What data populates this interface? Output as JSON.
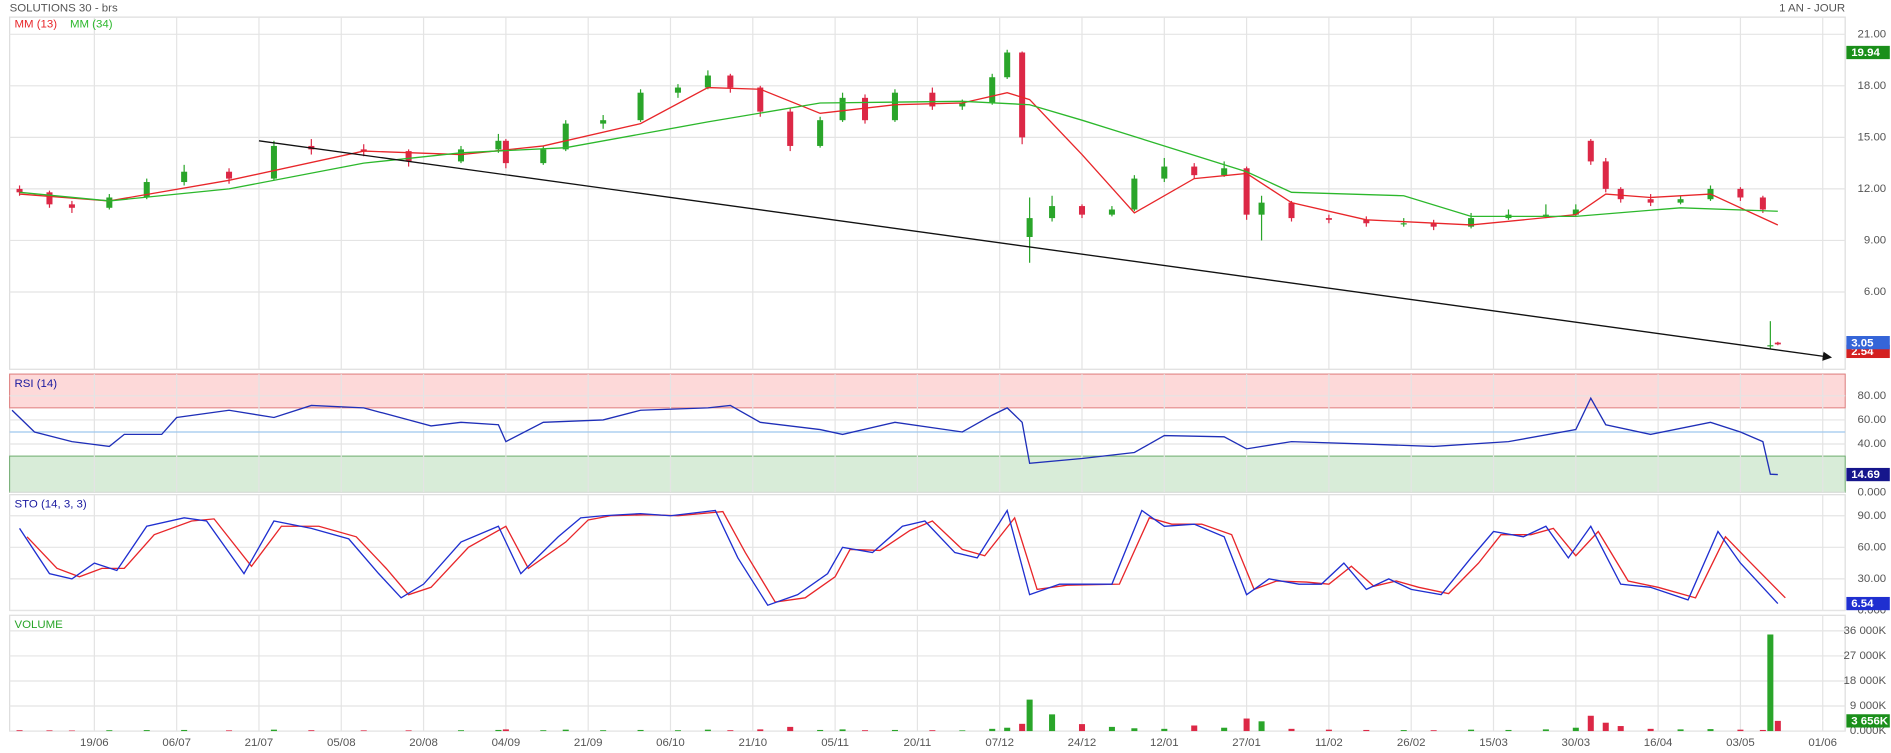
{
  "chart_data": [
    {
      "type": "candlestick",
      "title": "SOLUTIONS 30 - brs",
      "subtitle": "1 AN - JOUR",
      "up_color": "#2aa52a",
      "down_color": "#dc2846",
      "x": [
        1,
        5,
        8,
        13,
        18,
        23,
        29,
        35,
        40,
        47,
        53,
        60,
        65,
        66,
        71,
        74,
        79,
        84,
        89,
        93,
        96,
        100,
        104,
        108,
        111,
        114,
        118,
        123,
        127,
        131,
        133,
        135,
        136,
        139,
        143,
        147,
        150,
        154,
        158,
        162,
        165,
        167,
        171,
        176,
        181,
        186,
        190,
        195,
        200,
        205,
        209,
        211,
        213,
        215,
        219,
        223,
        227,
        231,
        234,
        235,
        236
      ],
      "open": [
        12.0,
        11.8,
        11.1,
        10.9,
        11.5,
        12.4,
        13.0,
        12.6,
        14.5,
        14.3,
        14.2,
        13.6,
        14.3,
        14.8,
        13.5,
        14.3,
        15.8,
        16.0,
        17.6,
        17.9,
        18.6,
        17.9,
        16.5,
        14.5,
        16.0,
        17.3,
        16.0,
        17.6,
        16.8,
        17.0,
        18.5,
        19.94,
        9.2,
        10.3,
        11.0,
        10.5,
        10.8,
        12.6,
        13.3,
        12.8,
        13.2,
        10.5,
        11.2,
        10.3,
        10.2,
        10.0,
        10.0,
        9.8,
        10.3,
        10.5,
        10.5,
        14.8,
        13.6,
        12.0,
        11.4,
        11.2,
        11.4,
        12.0,
        11.5,
        2.85,
        3.05
      ],
      "high": [
        12.2,
        11.9,
        11.3,
        11.7,
        12.6,
        13.4,
        13.2,
        14.8,
        14.9,
        14.6,
        14.3,
        14.5,
        15.2,
        14.9,
        14.5,
        16.0,
        16.3,
        17.8,
        18.1,
        18.9,
        18.7,
        18.0,
        16.7,
        16.2,
        17.6,
        17.5,
        17.8,
        17.9,
        17.2,
        18.7,
        20.1,
        20.0,
        11.5,
        11.6,
        11.1,
        11.0,
        12.8,
        13.8,
        13.5,
        13.6,
        13.3,
        11.6,
        11.3,
        10.5,
        10.4,
        10.3,
        10.2,
        10.6,
        10.8,
        11.1,
        11.1,
        14.9,
        13.8,
        12.1,
        11.7,
        11.6,
        12.2,
        12.1,
        11.6,
        4.3,
        3.1
      ],
      "low": [
        11.6,
        10.9,
        10.6,
        10.8,
        11.4,
        12.2,
        12.3,
        12.5,
        14.0,
        13.9,
        13.3,
        13.5,
        14.1,
        13.2,
        13.4,
        14.2,
        15.5,
        15.9,
        17.3,
        17.8,
        17.6,
        16.2,
        14.2,
        14.4,
        15.9,
        15.8,
        15.9,
        16.6,
        16.6,
        16.9,
        18.4,
        14.6,
        7.7,
        10.1,
        10.3,
        10.4,
        10.7,
        12.4,
        12.6,
        12.7,
        10.2,
        9.0,
        10.1,
        10.0,
        9.8,
        9.8,
        9.6,
        9.7,
        10.2,
        10.3,
        10.4,
        13.4,
        11.8,
        11.2,
        11.0,
        11.1,
        11.3,
        11.3,
        10.6,
        2.7,
        2.9
      ],
      "close": [
        11.8,
        11.1,
        10.9,
        11.5,
        12.4,
        13.0,
        12.6,
        14.5,
        14.3,
        14.2,
        13.6,
        14.3,
        14.8,
        13.5,
        14.3,
        15.8,
        16.0,
        17.6,
        17.9,
        18.6,
        17.9,
        16.5,
        14.5,
        16.0,
        17.3,
        16.0,
        17.6,
        16.8,
        17.0,
        18.5,
        19.94,
        15.0,
        10.3,
        11.0,
        10.5,
        10.8,
        12.6,
        13.3,
        12.8,
        13.2,
        10.5,
        11.2,
        10.3,
        10.2,
        10.0,
        10.0,
        9.8,
        10.3,
        10.5,
        10.5,
        10.8,
        13.6,
        12.0,
        11.4,
        11.2,
        11.4,
        12.0,
        11.5,
        10.8,
        2.9,
        2.95
      ],
      "series": [
        {
          "name": "MM (13)",
          "color": "#e8262a",
          "x": [
            1,
            13,
            29,
            47,
            60,
            71,
            84,
            93,
            100,
            108,
            118,
            127,
            133,
            136,
            143,
            150,
            158,
            165,
            171,
            181,
            195,
            209,
            213,
            219,
            227,
            236
          ],
          "values": [
            11.7,
            11.3,
            12.5,
            14.2,
            14.0,
            14.5,
            15.8,
            17.9,
            17.8,
            16.4,
            16.9,
            17.0,
            17.6,
            17.2,
            14.0,
            10.6,
            12.6,
            12.9,
            11.2,
            10.2,
            9.9,
            10.5,
            11.7,
            11.5,
            11.7,
            9.9
          ]
        },
        {
          "name": "MM (34)",
          "color": "#2cb82c",
          "x": [
            1,
            13,
            29,
            47,
            60,
            74,
            93,
            108,
            127,
            136,
            143,
            165,
            171,
            186,
            195,
            209,
            223,
            236
          ],
          "values": [
            11.8,
            11.3,
            12.0,
            13.5,
            14.1,
            14.4,
            15.9,
            17.0,
            17.1,
            16.9,
            16.0,
            13.0,
            11.8,
            11.6,
            10.4,
            10.4,
            10.9,
            10.7
          ]
        }
      ],
      "trendline": {
        "color": "#111111",
        "x": [
          33,
          243
        ],
        "values": [
          14.8,
          2.2
        ]
      },
      "xlim": [
        0,
        245
      ],
      "xticks": [
        {
          "value": 11,
          "label": "19/06"
        },
        {
          "value": 22,
          "label": "06/07"
        },
        {
          "value": 33,
          "label": "21/07"
        },
        {
          "value": 44,
          "label": "05/08"
        },
        {
          "value": 55,
          "label": "20/08"
        },
        {
          "value": 66,
          "label": "04/09"
        },
        {
          "value": 77,
          "label": "21/09"
        },
        {
          "value": 88,
          "label": "06/10"
        },
        {
          "value": 99,
          "label": "21/10"
        },
        {
          "value": 110,
          "label": "05/11"
        },
        {
          "value": 121,
          "label": "20/11"
        },
        {
          "value": 132,
          "label": "07/12"
        },
        {
          "value": 143,
          "label": "24/12"
        },
        {
          "value": 154,
          "label": "12/01"
        },
        {
          "value": 165,
          "label": "27/01"
        },
        {
          "value": 176,
          "label": "11/02"
        },
        {
          "value": 187,
          "label": "26/02"
        },
        {
          "value": 198,
          "label": "15/03"
        },
        {
          "value": 209,
          "label": "30/03"
        },
        {
          "value": 220,
          "label": "16/04"
        },
        {
          "value": 231,
          "label": "03/05"
        },
        {
          "value": 242,
          "label": "01/06"
        }
      ],
      "ylim": [
        1.5,
        22
      ],
      "yticks": [
        {
          "value": 6,
          "label": "6.00"
        },
        {
          "value": 9,
          "label": "9.00"
        },
        {
          "value": 12,
          "label": "12.00"
        },
        {
          "value": 15,
          "label": "15.00"
        },
        {
          "value": 18,
          "label": "18.00"
        },
        {
          "value": 21,
          "label": "21.00"
        }
      ],
      "badges": [
        {
          "value": 19.94,
          "color": "#1a8f1a"
        },
        {
          "value": 2.54,
          "color": "#d42020"
        },
        {
          "value": 3.05,
          "color": "#3565d8"
        }
      ]
    },
    {
      "type": "line",
      "title": "RSI (14)",
      "title_color": "#1a1aa0",
      "ylim": [
        0,
        98
      ],
      "yticks": [
        {
          "value": 0,
          "label": "0.000"
        },
        {
          "value": 40,
          "label": "40.00"
        },
        {
          "value": 60,
          "label": "60.00"
        },
        {
          "value": 80,
          "label": "80.00"
        }
      ],
      "bands": [
        {
          "from": 70,
          "to": 98,
          "color": "#fdd9d9",
          "edge": "#e07a7a"
        },
        {
          "from": 0,
          "to": 30,
          "color": "#d8ecd8",
          "edge": "#6aaa6a"
        }
      ],
      "midline": 50,
      "series": [
        {
          "color": "#1f2fb8",
          "x": [
            0,
            3,
            8,
            13,
            15,
            20,
            22,
            29,
            35,
            40,
            47,
            53,
            56,
            60,
            65,
            66,
            71,
            79,
            84,
            93,
            96,
            100,
            108,
            111,
            118,
            127,
            131,
            133,
            135,
            136,
            143,
            150,
            154,
            162,
            165,
            171,
            181,
            190,
            200,
            209,
            211,
            213,
            219,
            227,
            231,
            234,
            235,
            236
          ],
          "values": [
            68,
            50,
            42,
            38,
            48,
            48,
            62,
            68,
            62,
            72,
            70,
            60,
            55,
            58,
            56,
            42,
            58,
            60,
            68,
            70,
            72,
            58,
            52,
            48,
            58,
            50,
            64,
            70,
            58,
            24,
            28,
            33,
            47,
            46,
            36,
            42,
            40,
            38,
            42,
            52,
            78,
            56,
            48,
            58,
            50,
            42,
            15,
            14.69
          ]
        }
      ],
      "badges": [
        {
          "value": 14.69,
          "color": "#16168c"
        }
      ]
    },
    {
      "type": "line",
      "title": "STO (14, 3, 3)",
      "title_color": "#1a1aa0",
      "ylim": [
        0,
        110
      ],
      "yticks": [
        {
          "value": 0,
          "label": "0.000"
        },
        {
          "value": 30,
          "label": "30.00"
        },
        {
          "value": 60,
          "label": "60.00"
        },
        {
          "value": 90,
          "label": "90.00"
        }
      ],
      "series": [
        {
          "color": "#e8262a",
          "x": [
            2,
            6,
            9,
            12,
            15,
            19,
            24,
            27,
            32,
            36,
            41,
            46,
            50,
            53,
            56,
            61,
            66,
            69,
            74,
            77,
            80,
            85,
            89,
            95,
            98,
            102,
            106,
            110,
            112,
            116,
            120,
            123,
            127,
            130,
            134,
            137,
            141,
            148,
            152,
            155,
            159,
            163,
            166,
            169,
            173,
            176,
            179,
            182,
            185,
            188,
            192,
            196,
            199,
            203,
            206,
            209,
            212,
            216,
            220,
            225,
            229,
            232,
            237
          ],
          "values": [
            70,
            40,
            32,
            40,
            40,
            72,
            85,
            87,
            42,
            80,
            80,
            70,
            40,
            15,
            22,
            60,
            80,
            40,
            65,
            86,
            90,
            91,
            90,
            94,
            55,
            8,
            12,
            32,
            58,
            57,
            76,
            85,
            58,
            52,
            88,
            20,
            24,
            25,
            88,
            82,
            82,
            72,
            20,
            28,
            27,
            25,
            42,
            23,
            28,
            22,
            16,
            45,
            72,
            72,
            78,
            52,
            75,
            28,
            22,
            12,
            70,
            48,
            12
          ]
        },
        {
          "color": "#1f2fd0",
          "x": [
            1,
            5,
            8,
            11,
            14,
            18,
            23,
            26,
            31,
            35,
            40,
            45,
            49,
            52,
            55,
            60,
            65,
            68,
            73,
            76,
            79,
            84,
            88,
            94,
            97,
            101,
            105,
            109,
            111,
            115,
            119,
            122,
            126,
            129,
            133,
            136,
            140,
            147,
            151,
            154,
            158,
            162,
            165,
            168,
            172,
            175,
            178,
            181,
            184,
            187,
            191,
            195,
            198,
            202,
            205,
            208,
            211,
            215,
            219,
            224,
            228,
            231,
            236
          ],
          "values": [
            78,
            35,
            30,
            45,
            38,
            80,
            88,
            85,
            35,
            85,
            78,
            68,
            35,
            12,
            25,
            65,
            80,
            35,
            70,
            88,
            90,
            92,
            90,
            95,
            50,
            5,
            15,
            35,
            60,
            55,
            80,
            85,
            55,
            50,
            95,
            15,
            25,
            25,
            95,
            80,
            82,
            70,
            15,
            30,
            25,
            25,
            45,
            20,
            30,
            20,
            15,
            50,
            75,
            70,
            80,
            50,
            80,
            25,
            22,
            10,
            75,
            45,
            6.54
          ]
        }
      ],
      "badges": [
        {
          "value": 6.54,
          "color": "#1f2fd0"
        }
      ]
    },
    {
      "type": "bar",
      "title": "VOLUME",
      "title_color": "#2aa52a",
      "ylim": [
        0,
        41600
      ],
      "yticks": [
        {
          "value": 0,
          "label": "0.000K"
        },
        {
          "value": 9000,
          "label": "9 000K"
        },
        {
          "value": 18000,
          "label": "18 000K"
        },
        {
          "value": 27000,
          "label": "27 000K"
        },
        {
          "value": 36000,
          "label": "36 000K"
        }
      ],
      "x": [
        1,
        5,
        8,
        13,
        18,
        23,
        29,
        35,
        40,
        47,
        53,
        60,
        65,
        66,
        71,
        74,
        79,
        84,
        89,
        93,
        96,
        100,
        104,
        108,
        111,
        114,
        118,
        123,
        127,
        131,
        133,
        135,
        136,
        139,
        143,
        147,
        150,
        154,
        158,
        162,
        165,
        167,
        171,
        176,
        181,
        186,
        190,
        195,
        200,
        205,
        209,
        211,
        213,
        215,
        219,
        223,
        227,
        231,
        234,
        235,
        236
      ],
      "values": [
        300,
        250,
        200,
        300,
        350,
        400,
        250,
        500,
        300,
        250,
        250,
        300,
        400,
        600,
        300,
        500,
        300,
        400,
        300,
        500,
        300,
        600,
        1500,
        400,
        600,
        300,
        400,
        300,
        250,
        800,
        1200,
        2600,
        11300,
        6000,
        2500,
        1500,
        1000,
        800,
        2000,
        1200,
        4500,
        3500,
        800,
        500,
        400,
        350,
        300,
        500,
        400,
        600,
        1200,
        5500,
        3000,
        1800,
        800,
        600,
        700,
        500,
        400,
        34700,
        3656
      ],
      "badges": [
        {
          "value": 3656,
          "label": "3 656K",
          "color": "#1a8f1a"
        }
      ]
    }
  ]
}
